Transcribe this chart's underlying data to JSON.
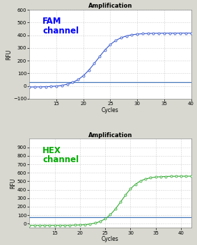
{
  "fam": {
    "title": "Amplification",
    "channel_label": "FAM\nchannel",
    "channel_color": "#0000ff",
    "line_color": "#3355cc",
    "threshold_color": "#4477bb",
    "threshold_y": 33,
    "xlim": [
      10,
      40
    ],
    "ylim": [
      -100,
      600
    ],
    "yticks": [
      -100,
      0,
      100,
      200,
      300,
      400,
      500,
      600
    ],
    "xticks": [
      15,
      20,
      25,
      30,
      35,
      40
    ],
    "xlabel": "Cycles",
    "ylabel": "RFU",
    "x_start": 10,
    "x_end": 40,
    "sigmoid_midpoint": 22.5,
    "sigmoid_steepness": 0.52,
    "sigmoid_max": 425,
    "sigmoid_baseline": -8
  },
  "hex": {
    "title": "Amplification",
    "channel_label": "HEX\nchannel",
    "channel_color": "#00aa00",
    "line_color": "#33aa33",
    "threshold_color": "#4477bb",
    "threshold_y": 75,
    "xlim": [
      10,
      42
    ],
    "ylim": [
      -50,
      1000
    ],
    "yticks": [
      0,
      100,
      200,
      300,
      400,
      500,
      600,
      700,
      800,
      900
    ],
    "xticks": [
      15,
      20,
      25,
      30,
      35,
      40
    ],
    "xlabel": "Cycles",
    "ylabel": "RFU",
    "x_start": 10,
    "x_end": 42,
    "sigmoid_midpoint": 28.2,
    "sigmoid_steepness": 0.58,
    "sigmoid_max": 580,
    "sigmoid_baseline": -20
  },
  "bg_color": "#d8d8d0",
  "plot_bg": "#ffffff",
  "fig_width": 2.83,
  "fig_height": 3.52,
  "dpi": 100
}
